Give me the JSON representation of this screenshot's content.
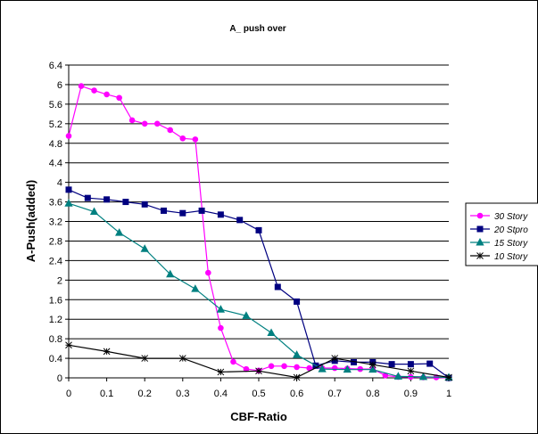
{
  "chart_data": {
    "type": "line",
    "title": "A_ push over",
    "xlabel": "CBF-Ratio",
    "ylabel": "A-Push(added)",
    "xlim": [
      0,
      1
    ],
    "ylim": [
      0,
      6.4
    ],
    "x_ticks": [
      "0",
      "0.1",
      "0.2",
      "0.3",
      "0.4",
      "0.5",
      "0.6",
      "0.7",
      "0.8",
      "0.9",
      "1"
    ],
    "y_ticks": [
      "0",
      "0.4",
      "0.8",
      "1.2",
      "1.6",
      "2",
      "2.4",
      "2.8",
      "3.2",
      "3.6",
      "4",
      "4.4",
      "4.8",
      "5.2",
      "5.6",
      "6",
      "6.4"
    ],
    "grid": "horizontal",
    "legend_position": "right",
    "series": [
      {
        "name": "30 Story",
        "color": "#ff00ff",
        "marker": "circle",
        "x": [
          0,
          0.033,
          0.067,
          0.1,
          0.133,
          0.167,
          0.2,
          0.233,
          0.267,
          0.3,
          0.333,
          0.367,
          0.4,
          0.433,
          0.467,
          0.5,
          0.533,
          0.567,
          0.6,
          0.633,
          0.667,
          0.7,
          0.733,
          0.767,
          0.8,
          0.833,
          0.867,
          0.9,
          0.933,
          0.967,
          1.0
        ],
        "y": [
          4.95,
          5.97,
          5.88,
          5.8,
          5.73,
          5.27,
          5.2,
          5.2,
          5.07,
          4.9,
          4.88,
          2.15,
          1.02,
          0.33,
          0.18,
          0.15,
          0.24,
          0.24,
          0.22,
          0.2,
          0.2,
          0.2,
          0.19,
          0.18,
          0.18,
          0.05,
          0.02,
          0.02,
          0.01,
          0.01,
          0.0
        ]
      },
      {
        "name": "20 Stpro",
        "color": "#000080",
        "marker": "square",
        "x": [
          0,
          0.05,
          0.1,
          0.15,
          0.2,
          0.25,
          0.3,
          0.35,
          0.4,
          0.45,
          0.5,
          0.55,
          0.6,
          0.65,
          0.7,
          0.75,
          0.8,
          0.85,
          0.9,
          0.95,
          1.0
        ],
        "y": [
          3.85,
          3.68,
          3.65,
          3.6,
          3.55,
          3.42,
          3.37,
          3.42,
          3.34,
          3.23,
          3.02,
          1.86,
          1.56,
          0.25,
          0.35,
          0.32,
          0.32,
          0.28,
          0.28,
          0.29,
          0.0
        ]
      },
      {
        "name": "15 Story",
        "color": "#008080",
        "marker": "triangle",
        "x": [
          0,
          0.067,
          0.133,
          0.2,
          0.267,
          0.333,
          0.4,
          0.467,
          0.533,
          0.6,
          0.667,
          0.733,
          0.8,
          0.867,
          0.933,
          1.0
        ],
        "y": [
          3.57,
          3.4,
          2.97,
          2.64,
          2.12,
          1.82,
          1.4,
          1.27,
          0.92,
          0.47,
          0.18,
          0.17,
          0.17,
          0.03,
          0.02,
          0.01
        ]
      },
      {
        "name": "10 Story",
        "color": "#000000",
        "marker": "star",
        "x": [
          0,
          0.1,
          0.2,
          0.3,
          0.4,
          0.5,
          0.6,
          0.7,
          0.8,
          0.9,
          1.0
        ],
        "y": [
          0.67,
          0.54,
          0.4,
          0.4,
          0.12,
          0.14,
          0.01,
          0.4,
          0.27,
          0.14,
          0.01
        ]
      }
    ]
  }
}
